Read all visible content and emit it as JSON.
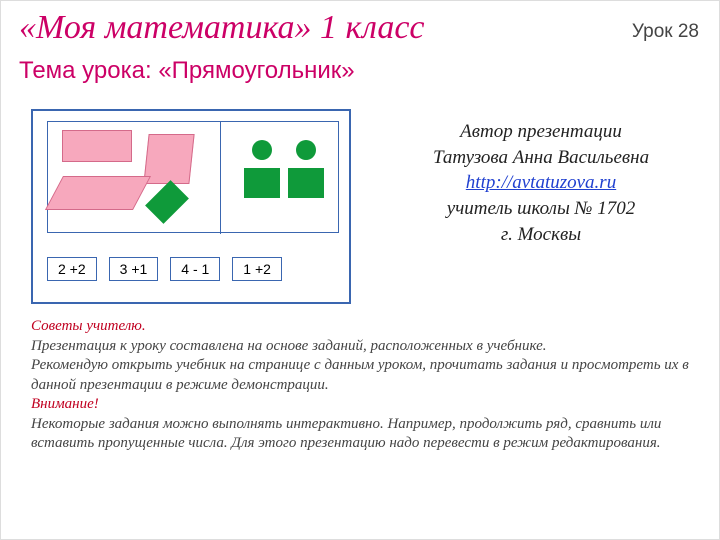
{
  "title": "«Моя математика» 1 класс",
  "lesson_number": "Урок 28",
  "topic": "Тема урока: «Прямоугольник»",
  "expressions": [
    "2 +2",
    "3 +1",
    "4 - 1",
    "1 +2"
  ],
  "author": {
    "line1": "Автор презентации",
    "line2": "Татузова Анна Васильевна",
    "url": "http://avtatuzova.ru",
    "line3": "учитель школы № 1702",
    "line4": "г. Москвы"
  },
  "tips": {
    "header1": "Советы учителю.",
    "p1": "Презентация к уроку составлена на основе заданий, расположенных в учебнике.",
    "p2": "Рекомендую открыть учебник на странице с данным уроком, прочитать задания и просмотреть их в данной презентации в режиме демонстрации.",
    "header2": "Внимание!",
    "p3": "Некоторые задания можно выполнять интерактивно. Например, продолжить ряд, сравнить или вставить пропущенные числа.  Для этого презентацию надо перевести в режим редактирования."
  },
  "colors": {
    "title_color": "#cc0066",
    "box_border": "#3a66b0",
    "pink_fill": "#f7a8bd",
    "pink_stroke": "#d46a8a",
    "green": "#0f9a3a",
    "tips_header": "#c00020",
    "link": "#2040d0",
    "text": "#444444",
    "bg": "#ffffff"
  }
}
